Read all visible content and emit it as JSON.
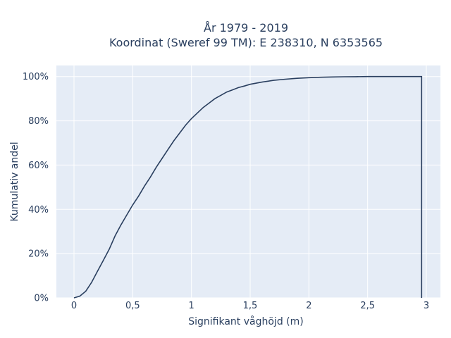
{
  "chart_data": {
    "type": "line",
    "title_line1": "År 1979 - 2019",
    "title_line2": "Koordinat (Sweref 99 TM): E 238310, N 6353565",
    "xlabel": "Signifikant våghöjd (m)",
    "ylabel": "Kumulativ andel",
    "xlim": [
      -0.15,
      3.12
    ],
    "ylim": [
      0,
      1.05
    ],
    "x_ticks": [
      0,
      0.5,
      1,
      1.5,
      2,
      2.5,
      3
    ],
    "x_tick_labels": [
      "0",
      "0,5",
      "1",
      "1,5",
      "2",
      "2,5",
      "3"
    ],
    "y_ticks": [
      0,
      0.2,
      0.4,
      0.6,
      0.8,
      1.0
    ],
    "y_tick_labels": [
      "0%",
      "20%",
      "40%",
      "60%",
      "80%",
      "100%"
    ],
    "grid": true,
    "background_color": "#e5ecf6",
    "line_color": "#2a3f5f",
    "series": [
      {
        "x": [
          0,
          0.05,
          0.1,
          0.15,
          0.2,
          0.25,
          0.3,
          0.35,
          0.4,
          0.45,
          0.5,
          0.55,
          0.6,
          0.65,
          0.7,
          0.75,
          0.8,
          0.85,
          0.9,
          0.95,
          1.0,
          1.05,
          1.1,
          1.15,
          1.2,
          1.25,
          1.3,
          1.35,
          1.4,
          1.45,
          1.5,
          1.6,
          1.7,
          1.8,
          1.9,
          2.0,
          2.1,
          2.2,
          2.3,
          2.4,
          2.5,
          2.6,
          2.7,
          2.8,
          2.9,
          2.96,
          2.96
        ],
        "y": [
          0.0,
          0.008,
          0.03,
          0.07,
          0.12,
          0.17,
          0.22,
          0.28,
          0.33,
          0.375,
          0.42,
          0.46,
          0.505,
          0.545,
          0.59,
          0.63,
          0.67,
          0.71,
          0.745,
          0.78,
          0.81,
          0.835,
          0.86,
          0.88,
          0.9,
          0.915,
          0.93,
          0.94,
          0.95,
          0.957,
          0.965,
          0.975,
          0.983,
          0.988,
          0.992,
          0.995,
          0.997,
          0.998,
          0.999,
          0.9995,
          1.0,
          1.0,
          1.0,
          1.0,
          1.0,
          1.0,
          0.0
        ]
      }
    ]
  }
}
